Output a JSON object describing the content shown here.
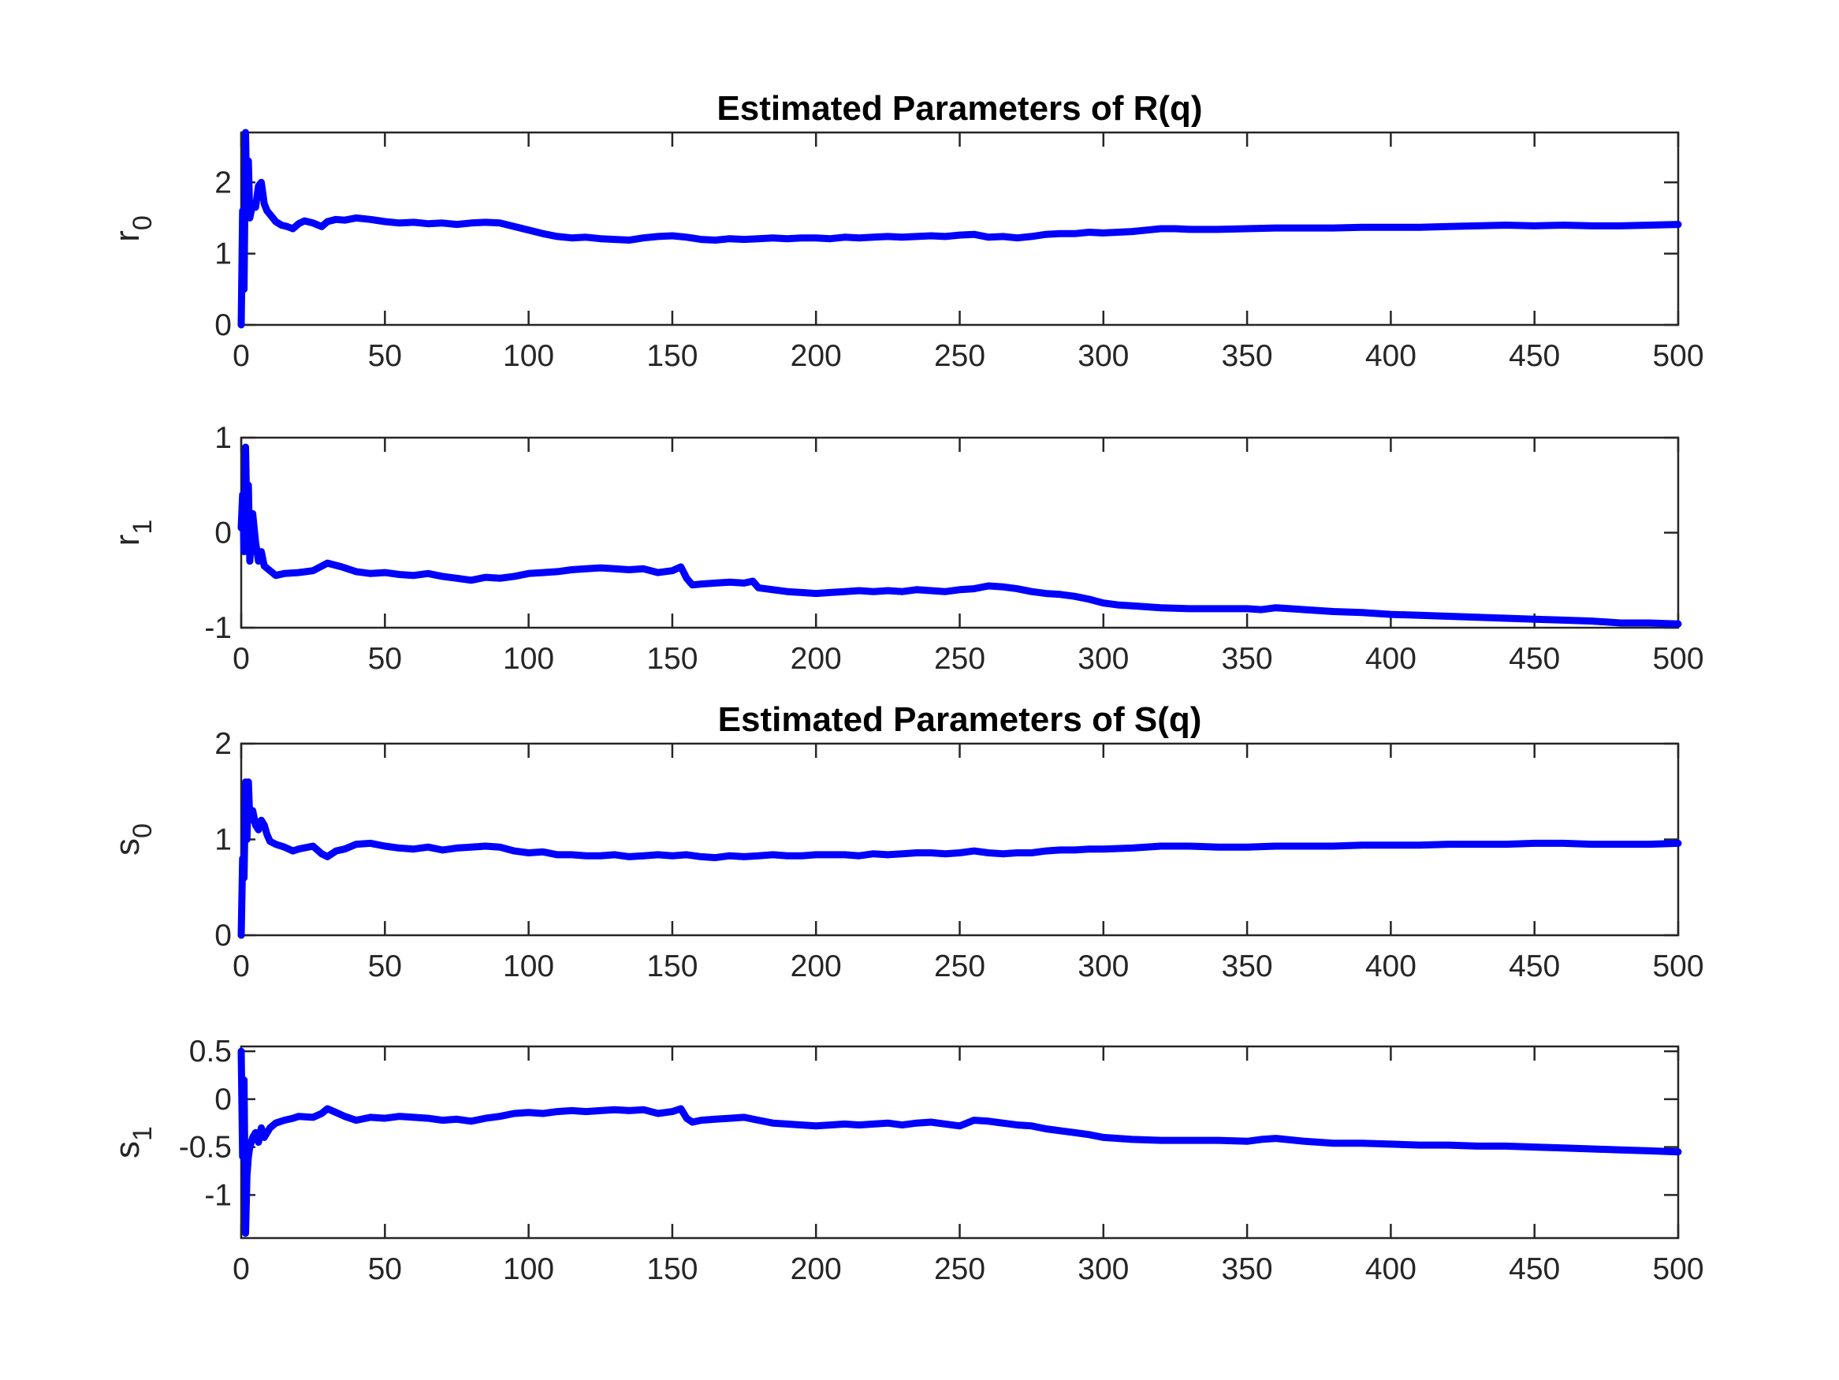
{
  "colors": {
    "series": "#0000ff",
    "axis": "#262626",
    "background": "#ffffff"
  },
  "chart_data": [
    {
      "type": "line",
      "title": "Estimated Parameters of R(q)",
      "ylabel": {
        "base": "r",
        "sub": "0"
      },
      "xlim": [
        0,
        500
      ],
      "ylim": [
        0,
        2.7
      ],
      "xticks": [
        0,
        50,
        100,
        150,
        200,
        250,
        300,
        350,
        400,
        450,
        500
      ],
      "yticks": [
        0,
        1,
        2
      ],
      "ytick_labels": [
        "0",
        "1",
        "2"
      ],
      "grid": false,
      "series": [
        {
          "color": "#0000ff",
          "x": [
            0,
            0.5,
            1,
            1.5,
            2,
            2.5,
            3,
            4,
            5,
            6,
            7,
            8,
            9,
            10,
            12,
            14,
            16,
            18,
            20,
            22,
            25,
            28,
            30,
            33,
            36,
            40,
            45,
            50,
            55,
            60,
            65,
            70,
            75,
            80,
            85,
            90,
            95,
            100,
            105,
            110,
            115,
            120,
            125,
            130,
            135,
            140,
            145,
            150,
            155,
            160,
            165,
            170,
            175,
            180,
            185,
            190,
            195,
            200,
            205,
            210,
            215,
            220,
            225,
            230,
            235,
            240,
            245,
            250,
            255,
            260,
            265,
            270,
            275,
            280,
            285,
            290,
            295,
            300,
            305,
            310,
            315,
            320,
            325,
            330,
            340,
            350,
            360,
            370,
            380,
            390,
            400,
            410,
            420,
            430,
            440,
            450,
            460,
            470,
            480,
            490,
            500
          ],
          "y": [
            0,
            1.6,
            0.5,
            2.7,
            1.5,
            2.3,
            1.5,
            1.7,
            1.65,
            1.95,
            2.0,
            1.7,
            1.6,
            1.55,
            1.45,
            1.4,
            1.38,
            1.35,
            1.42,
            1.46,
            1.43,
            1.38,
            1.45,
            1.48,
            1.47,
            1.5,
            1.48,
            1.45,
            1.43,
            1.44,
            1.42,
            1.43,
            1.41,
            1.43,
            1.44,
            1.43,
            1.38,
            1.33,
            1.28,
            1.24,
            1.22,
            1.23,
            1.21,
            1.2,
            1.19,
            1.22,
            1.24,
            1.25,
            1.23,
            1.2,
            1.19,
            1.21,
            1.2,
            1.21,
            1.22,
            1.21,
            1.22,
            1.22,
            1.21,
            1.23,
            1.22,
            1.23,
            1.24,
            1.23,
            1.24,
            1.25,
            1.24,
            1.26,
            1.27,
            1.23,
            1.24,
            1.22,
            1.24,
            1.27,
            1.28,
            1.28,
            1.3,
            1.29,
            1.3,
            1.31,
            1.33,
            1.35,
            1.35,
            1.34,
            1.34,
            1.35,
            1.36,
            1.36,
            1.36,
            1.37,
            1.37,
            1.37,
            1.38,
            1.39,
            1.4,
            1.39,
            1.4,
            1.39,
            1.39,
            1.4,
            1.41
          ]
        }
      ]
    },
    {
      "type": "line",
      "title": "",
      "ylabel": {
        "base": "r",
        "sub": "1"
      },
      "xlim": [
        0,
        500
      ],
      "ylim": [
        -1,
        1
      ],
      "xticks": [
        0,
        50,
        100,
        150,
        200,
        250,
        300,
        350,
        400,
        450,
        500
      ],
      "yticks": [
        -1,
        0,
        1
      ],
      "ytick_labels": [
        "-1",
        "0",
        "1"
      ],
      "grid": false,
      "series": [
        {
          "color": "#0000ff",
          "x": [
            0,
            0.5,
            1,
            1.5,
            2,
            2.5,
            3,
            4,
            5,
            6,
            7,
            8,
            10,
            12,
            15,
            20,
            25,
            30,
            35,
            40,
            45,
            50,
            55,
            60,
            65,
            70,
            75,
            80,
            85,
            90,
            95,
            100,
            105,
            110,
            115,
            120,
            125,
            130,
            135,
            140,
            145,
            150,
            153,
            155,
            157,
            160,
            165,
            170,
            175,
            178,
            180,
            185,
            190,
            195,
            200,
            205,
            210,
            215,
            220,
            225,
            230,
            235,
            240,
            245,
            250,
            255,
            260,
            265,
            270,
            275,
            280,
            285,
            290,
            295,
            300,
            305,
            310,
            320,
            330,
            340,
            350,
            355,
            360,
            365,
            370,
            380,
            390,
            400,
            410,
            420,
            430,
            440,
            450,
            460,
            470,
            480,
            490,
            500
          ],
          "y": [
            0.05,
            0.4,
            -0.2,
            0.9,
            0.1,
            0.5,
            -0.3,
            0.2,
            -0.1,
            -0.3,
            -0.2,
            -0.35,
            -0.4,
            -0.45,
            -0.43,
            -0.42,
            -0.4,
            -0.32,
            -0.36,
            -0.41,
            -0.43,
            -0.42,
            -0.44,
            -0.45,
            -0.43,
            -0.46,
            -0.48,
            -0.5,
            -0.47,
            -0.48,
            -0.46,
            -0.43,
            -0.42,
            -0.41,
            -0.39,
            -0.38,
            -0.37,
            -0.38,
            -0.39,
            -0.38,
            -0.42,
            -0.4,
            -0.36,
            -0.48,
            -0.55,
            -0.54,
            -0.53,
            -0.52,
            -0.53,
            -0.51,
            -0.58,
            -0.6,
            -0.62,
            -0.63,
            -0.64,
            -0.63,
            -0.62,
            -0.61,
            -0.62,
            -0.61,
            -0.62,
            -0.6,
            -0.61,
            -0.62,
            -0.6,
            -0.59,
            -0.56,
            -0.57,
            -0.59,
            -0.62,
            -0.64,
            -0.65,
            -0.67,
            -0.7,
            -0.74,
            -0.76,
            -0.77,
            -0.79,
            -0.8,
            -0.8,
            -0.8,
            -0.81,
            -0.79,
            -0.8,
            -0.81,
            -0.83,
            -0.84,
            -0.86,
            -0.87,
            -0.88,
            -0.89,
            -0.9,
            -0.91,
            -0.92,
            -0.93,
            -0.95,
            -0.95,
            -0.96
          ]
        }
      ]
    },
    {
      "type": "line",
      "title": "Estimated Parameters of S(q)",
      "ylabel": {
        "base": "s",
        "sub": "0"
      },
      "xlim": [
        0,
        500
      ],
      "ylim": [
        0,
        2
      ],
      "xticks": [
        0,
        50,
        100,
        150,
        200,
        250,
        300,
        350,
        400,
        450,
        500
      ],
      "yticks": [
        0,
        1,
        2
      ],
      "ytick_labels": [
        "0",
        "1",
        "2"
      ],
      "grid": false,
      "series": [
        {
          "color": "#0000ff",
          "x": [
            0,
            0.5,
            1,
            1.5,
            2,
            2.5,
            3,
            4,
            5,
            6,
            7,
            8,
            9,
            10,
            12,
            15,
            18,
            20,
            25,
            28,
            30,
            33,
            36,
            40,
            45,
            50,
            55,
            60,
            65,
            70,
            75,
            80,
            85,
            90,
            95,
            100,
            105,
            110,
            115,
            120,
            125,
            130,
            135,
            140,
            145,
            150,
            155,
            160,
            165,
            170,
            175,
            180,
            185,
            190,
            195,
            200,
            205,
            210,
            215,
            220,
            225,
            230,
            235,
            240,
            245,
            250,
            255,
            260,
            265,
            270,
            275,
            280,
            285,
            290,
            295,
            300,
            310,
            320,
            330,
            340,
            350,
            360,
            370,
            380,
            390,
            400,
            410,
            420,
            430,
            440,
            450,
            460,
            470,
            480,
            490,
            500
          ],
          "y": [
            0,
            0.8,
            0.6,
            1.6,
            1.0,
            1.6,
            1.2,
            1.3,
            1.15,
            1.1,
            1.2,
            1.15,
            1.05,
            0.98,
            0.95,
            0.92,
            0.88,
            0.9,
            0.93,
            0.85,
            0.82,
            0.88,
            0.9,
            0.95,
            0.96,
            0.93,
            0.91,
            0.9,
            0.92,
            0.89,
            0.91,
            0.92,
            0.93,
            0.92,
            0.88,
            0.86,
            0.87,
            0.84,
            0.84,
            0.83,
            0.83,
            0.84,
            0.82,
            0.83,
            0.84,
            0.83,
            0.84,
            0.82,
            0.81,
            0.83,
            0.82,
            0.83,
            0.84,
            0.83,
            0.83,
            0.84,
            0.84,
            0.84,
            0.83,
            0.85,
            0.84,
            0.85,
            0.86,
            0.86,
            0.85,
            0.86,
            0.88,
            0.86,
            0.85,
            0.86,
            0.86,
            0.88,
            0.89,
            0.89,
            0.9,
            0.9,
            0.91,
            0.93,
            0.93,
            0.92,
            0.92,
            0.93,
            0.93,
            0.93,
            0.94,
            0.94,
            0.94,
            0.95,
            0.95,
            0.95,
            0.96,
            0.96,
            0.95,
            0.95,
            0.95,
            0.96
          ]
        }
      ]
    },
    {
      "type": "line",
      "title": "",
      "ylabel": {
        "base": "s",
        "sub": "1"
      },
      "xlim": [
        0,
        500
      ],
      "ylim": [
        -1.45,
        0.55
      ],
      "xticks": [
        0,
        50,
        100,
        150,
        200,
        250,
        300,
        350,
        400,
        450,
        500
      ],
      "yticks": [
        -1,
        -0.5,
        0,
        0.5
      ],
      "ytick_labels": [
        "-1",
        "-0.5",
        "0",
        "0.5"
      ],
      "grid": false,
      "series": [
        {
          "color": "#0000ff",
          "x": [
            0,
            0.5,
            1,
            1.5,
            2,
            2.5,
            3,
            4,
            5,
            6,
            7,
            8,
            9,
            10,
            12,
            15,
            18,
            20,
            25,
            28,
            30,
            33,
            36,
            40,
            45,
            50,
            55,
            60,
            65,
            70,
            75,
            80,
            85,
            90,
            95,
            100,
            105,
            110,
            115,
            120,
            125,
            130,
            135,
            140,
            145,
            150,
            153,
            155,
            157,
            160,
            165,
            170,
            175,
            180,
            185,
            190,
            195,
            200,
            205,
            210,
            215,
            220,
            225,
            230,
            235,
            240,
            245,
            250,
            255,
            260,
            265,
            270,
            275,
            280,
            285,
            290,
            295,
            300,
            310,
            320,
            330,
            340,
            350,
            355,
            360,
            370,
            380,
            390,
            400,
            410,
            420,
            430,
            440,
            450,
            460,
            470,
            480,
            490,
            500
          ],
          "y": [
            0.5,
            -0.6,
            0.2,
            -1.4,
            -0.8,
            -0.6,
            -0.5,
            -0.4,
            -0.35,
            -0.45,
            -0.3,
            -0.4,
            -0.35,
            -0.3,
            -0.25,
            -0.22,
            -0.2,
            -0.18,
            -0.19,
            -0.15,
            -0.1,
            -0.14,
            -0.18,
            -0.22,
            -0.19,
            -0.2,
            -0.18,
            -0.19,
            -0.2,
            -0.22,
            -0.21,
            -0.23,
            -0.2,
            -0.18,
            -0.15,
            -0.14,
            -0.15,
            -0.13,
            -0.12,
            -0.13,
            -0.12,
            -0.11,
            -0.12,
            -0.11,
            -0.15,
            -0.13,
            -0.1,
            -0.2,
            -0.24,
            -0.22,
            -0.21,
            -0.2,
            -0.19,
            -0.22,
            -0.25,
            -0.26,
            -0.27,
            -0.28,
            -0.27,
            -0.26,
            -0.27,
            -0.26,
            -0.25,
            -0.27,
            -0.25,
            -0.24,
            -0.26,
            -0.28,
            -0.22,
            -0.23,
            -0.25,
            -0.27,
            -0.28,
            -0.31,
            -0.33,
            -0.35,
            -0.37,
            -0.4,
            -0.42,
            -0.43,
            -0.43,
            -0.43,
            -0.44,
            -0.42,
            -0.41,
            -0.44,
            -0.46,
            -0.46,
            -0.47,
            -0.48,
            -0.48,
            -0.49,
            -0.49,
            -0.5,
            -0.51,
            -0.52,
            -0.53,
            -0.54,
            -0.55
          ]
        }
      ]
    }
  ]
}
